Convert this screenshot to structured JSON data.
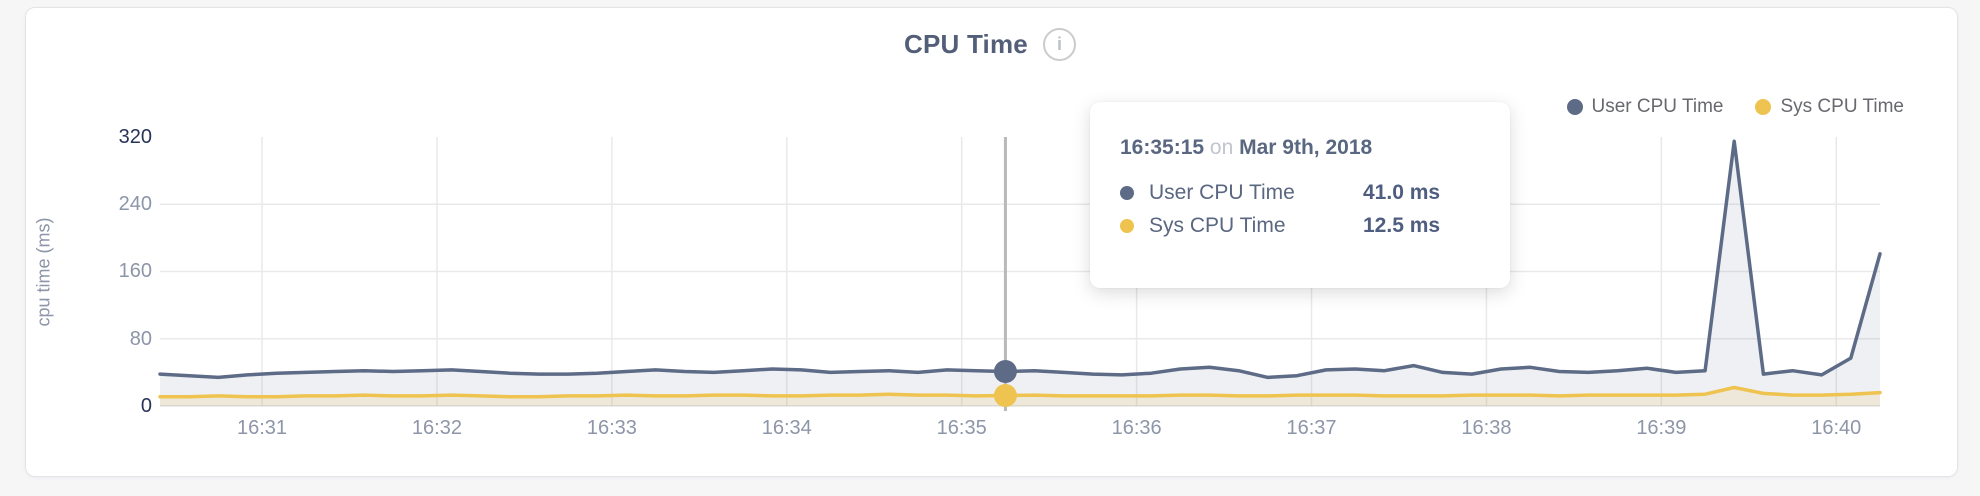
{
  "page": {
    "background": "#f6f6f7"
  },
  "header": {
    "title": "CPU Time",
    "info_icon": "i"
  },
  "legend": {
    "items": [
      {
        "label": "User CPU Time",
        "color": "#5d6b87"
      },
      {
        "label": "Sys CPU Time",
        "color": "#eec350"
      }
    ]
  },
  "tooltip": {
    "time": "16:35:15",
    "conjunction": "on",
    "date": "Mar 9th, 2018",
    "rows": [
      {
        "label": "User CPU Time",
        "value": "41.0 ms",
        "color": "#5d6b87"
      },
      {
        "label": "Sys CPU Time",
        "value": "12.5 ms",
        "color": "#eec350"
      }
    ]
  },
  "chart_data": {
    "type": "area",
    "title": "CPU Time",
    "xlabel": "",
    "ylabel": "cpu time (ms)",
    "ylim": [
      0,
      320
    ],
    "y_ticks": [
      320,
      240,
      160,
      80,
      0
    ],
    "y_gridlines": [
      240,
      160,
      80
    ],
    "grid": true,
    "legend_position": "top-right",
    "x_start": "16:30:25",
    "x_end": "16:40:15",
    "x_span_seconds": 590,
    "interval_seconds": 10,
    "x_tick_labels": [
      "16:31",
      "16:32",
      "16:33",
      "16:34",
      "16:35",
      "16:36",
      "16:37",
      "16:38",
      "16:39",
      "16:40"
    ],
    "x_tick_offsets_s": [
      35,
      95,
      155,
      215,
      275,
      335,
      395,
      455,
      515,
      575
    ],
    "hover": {
      "index": 29,
      "time": "16:35:15",
      "date": "Mar 9th, 2018",
      "user_ms": 41.0,
      "sys_ms": 12.5
    },
    "series": [
      {
        "name": "User CPU Time",
        "color": "#5d6b87",
        "fill": "rgba(93,107,135,0.10)",
        "values": [
          38,
          36,
          34,
          37,
          39,
          40,
          41,
          42,
          41,
          42,
          43,
          41,
          39,
          38,
          38,
          39,
          41,
          43,
          41,
          40,
          42,
          44,
          43,
          40,
          41,
          42,
          40,
          43,
          42,
          41,
          42,
          40,
          38,
          37,
          39,
          44,
          46,
          42,
          34,
          36,
          43,
          44,
          42,
          48,
          40,
          38,
          44,
          46,
          41,
          40,
          42,
          45,
          40,
          42,
          315,
          38,
          42,
          37,
          57,
          181
        ]
      },
      {
        "name": "Sys CPU Time",
        "color": "#eec350",
        "fill": "rgba(238,195,80,0.16)",
        "values": [
          11,
          11,
          12,
          11,
          11,
          12,
          12,
          13,
          12,
          12,
          13,
          12,
          11,
          11,
          12,
          12,
          13,
          12,
          12,
          13,
          13,
          12,
          12,
          13,
          13,
          14,
          13,
          13,
          12,
          12.5,
          13,
          12,
          12,
          12,
          12,
          13,
          13,
          12,
          12,
          13,
          13,
          13,
          12,
          12,
          12,
          13,
          13,
          13,
          12,
          13,
          13,
          13,
          13,
          14,
          22,
          15,
          13,
          13,
          14,
          16
        ]
      }
    ],
    "colors": {
      "grid": "#e9e9e9",
      "baseline": "#e3e3e5",
      "crosshair": "#b9b9b9",
      "tick_text": "#8d95a8",
      "tick_text_strong": "#273457"
    }
  }
}
